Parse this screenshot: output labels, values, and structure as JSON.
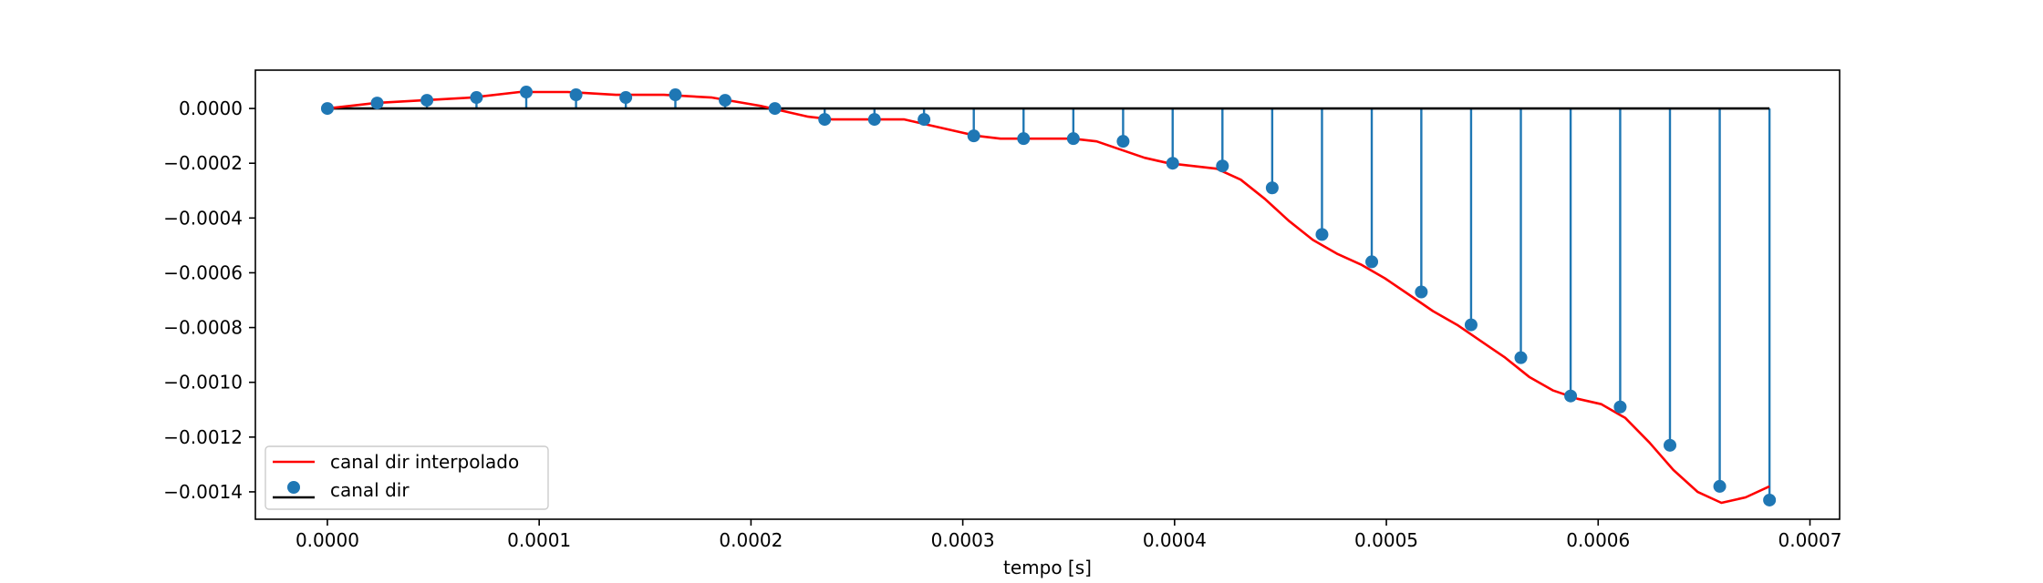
{
  "chart_data": {
    "type": "stem",
    "xlabel": "tempo [s]",
    "ylabel": "",
    "title": "",
    "xlim": [
      -3.4e-05,
      0.000714
    ],
    "ylim": [
      -0.0015,
      0.00014
    ],
    "xticks": [
      0,
      0.0001,
      0.0002,
      0.0003,
      0.0004,
      0.0005,
      0.0006,
      0.0007
    ],
    "xtick_labels": [
      "0.0000",
      "0.0001",
      "0.0002",
      "0.0003",
      "0.0004",
      "0.0005",
      "0.0006",
      "0.0007"
    ],
    "yticks": [
      0,
      -0.0002,
      -0.0004,
      -0.0006,
      -0.0008,
      -0.001,
      -0.0012,
      -0.0014
    ],
    "ytick_labels": [
      "0.0000",
      "−0.0002",
      "−0.0004",
      "−0.0006",
      "−0.0008",
      "−0.0010",
      "−0.0012",
      "−0.0014"
    ],
    "grid": false,
    "legend_position": "lower-left",
    "baseline": 0,
    "series": [
      {
        "name": "canal dir interpolado",
        "kind": "line",
        "color": "#ff0000",
        "x": [
          0,
          2.27e-05,
          4.54e-05,
          6.81e-05,
          9.08e-05,
          0.0001135,
          0.0001362,
          0.0001589,
          0.0001816,
          0.0002043,
          0.000227,
          0.0002384,
          0.0002497,
          0.000261,
          0.0002724,
          0.0002837,
          0.0002951,
          0.0003064,
          0.0003178,
          0.0003291,
          0.0003405,
          0.0003518,
          0.0003632,
          0.0003745,
          0.0003858,
          0.0003972,
          0.0004085,
          0.0004199,
          0.0004312,
          0.0004426,
          0.0004539,
          0.0004653,
          0.0004766,
          0.000488,
          0.0004993,
          0.0005107,
          0.000522,
          0.0005334,
          0.0005447,
          0.0005561,
          0.0005674,
          0.0005788,
          0.0005901,
          0.0006015,
          0.0006128,
          0.0006242,
          0.0006355,
          0.0006469,
          0.0006582,
          0.0006696,
          0.0006809
        ],
        "y": [
          0,
          2e-05,
          3e-05,
          4e-05,
          6e-05,
          6e-05,
          5e-05,
          5e-05,
          4e-05,
          1e-05,
          -3e-05,
          -4e-05,
          -4e-05,
          -4e-05,
          -4e-05,
          -6e-05,
          -8e-05,
          -0.0001,
          -0.00011,
          -0.00011,
          -0.00011,
          -0.00011,
          -0.00012,
          -0.00015,
          -0.00018,
          -0.0002,
          -0.00021,
          -0.00022,
          -0.00026,
          -0.00033,
          -0.00041,
          -0.00048,
          -0.00053,
          -0.00057,
          -0.00062,
          -0.00068,
          -0.00074,
          -0.00079,
          -0.00085,
          -0.00091,
          -0.00098,
          -0.00103,
          -0.00106,
          -0.00108,
          -0.00113,
          -0.00122,
          -0.00132,
          -0.0014,
          -0.00144,
          -0.00142,
          -0.00138
        ]
      },
      {
        "name": "canal dir",
        "kind": "stem",
        "color": "#1f77b4",
        "baseline_color": "#000000",
        "x": [
          0,
          2.35e-05,
          4.7e-05,
          7.04e-05,
          9.39e-05,
          0.0001174,
          0.0001409,
          0.0001643,
          0.0001878,
          0.0002113,
          0.0002348,
          0.0002583,
          0.0002817,
          0.0003052,
          0.0003287,
          0.0003522,
          0.0003757,
          0.0003991,
          0.0004226,
          0.0004461,
          0.0004696,
          0.0004931,
          0.0005165,
          0.00054,
          0.0005635,
          0.000587,
          0.0006104,
          0.0006339,
          0.0006574,
          0.0006809
        ],
        "y": [
          0,
          2e-05,
          3e-05,
          4e-05,
          6e-05,
          5e-05,
          4e-05,
          5e-05,
          3e-05,
          0,
          -4e-05,
          -4e-05,
          -4e-05,
          -0.0001,
          -0.00011,
          -0.00011,
          -0.00012,
          -0.0002,
          -0.00021,
          -0.00029,
          -0.00046,
          -0.00056,
          -0.00067,
          -0.00079,
          -0.00091,
          -0.00105,
          -0.00109,
          -0.00123,
          -0.00138,
          -0.00143
        ]
      }
    ]
  }
}
